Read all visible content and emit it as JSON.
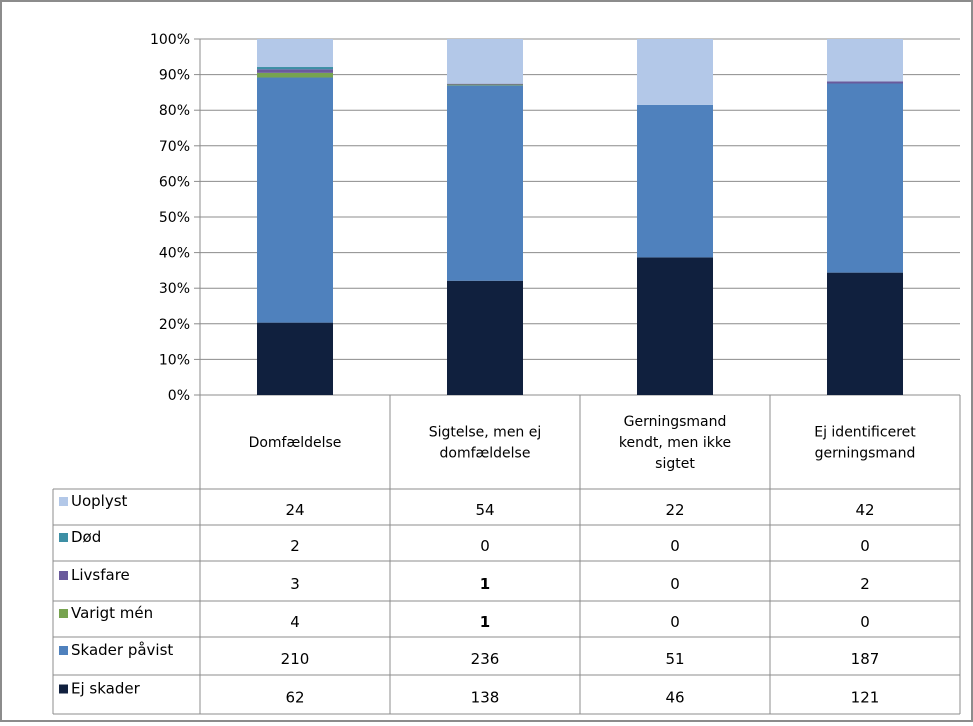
{
  "chart_data": {
    "type": "bar",
    "stacked": true,
    "normalized": "percent",
    "ylim": [
      0,
      100
    ],
    "y_ticks": [
      "0%",
      "10%",
      "20%",
      "30%",
      "40%",
      "50%",
      "60%",
      "70%",
      "80%",
      "90%",
      "100%"
    ],
    "categories": [
      [
        "Domfældelse"
      ],
      [
        "Sigtelse, men ej",
        "domfældelse"
      ],
      [
        "Gerningsmand",
        "kendt, men ikke",
        "sigtet"
      ],
      [
        "Ej identificeret",
        "gerningsmand"
      ]
    ],
    "series": [
      {
        "name": "Ej skader",
        "color": "#10203e",
        "values": [
          62,
          138,
          46,
          121
        ]
      },
      {
        "name": "Skader påvist",
        "color": "#4f81bd",
        "values": [
          210,
          236,
          51,
          187
        ]
      },
      {
        "name": "Varigt mén",
        "color": "#77a34f",
        "values": [
          4,
          1,
          0,
          0
        ]
      },
      {
        "name": "Livsfare",
        "color": "#6a5a9c",
        "values": [
          3,
          1,
          0,
          2
        ]
      },
      {
        "name": "Død",
        "color": "#3d8fa5",
        "values": [
          2,
          0,
          0,
          0
        ]
      },
      {
        "name": "Uoplyst",
        "color": "#b3c8e8",
        "values": [
          24,
          54,
          22,
          42
        ]
      }
    ],
    "bold_cells": [
      [
        "Livsfare",
        1
      ],
      [
        "Varigt mén",
        1
      ]
    ],
    "table_row_order": [
      "Uoplyst",
      "Død",
      "Livsfare",
      "Varigt mén",
      "Skader påvist",
      "Ej skader"
    ],
    "grid": true,
    "legend": "data table"
  }
}
